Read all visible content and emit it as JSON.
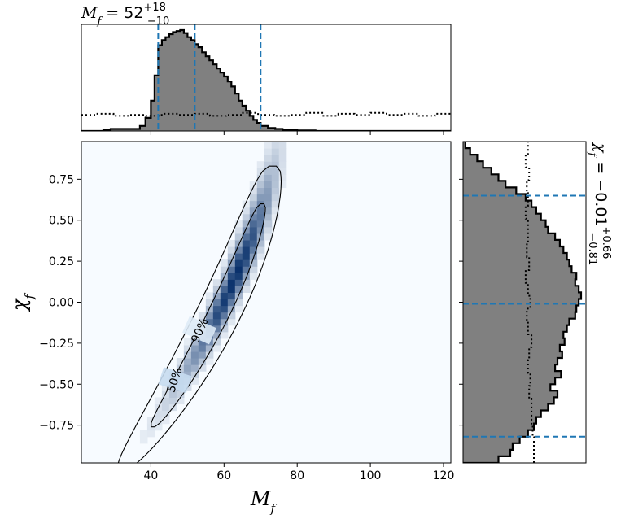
{
  "chart_data": {
    "type": "heatmap",
    "title_x": {
      "symbol": "M",
      "sub": "f",
      "value": "52",
      "plus": "+18",
      "minus": "−10"
    },
    "title_y": {
      "symbol": "χ",
      "sub": "f",
      "value": "−0.01",
      "plus": "+0.66",
      "minus": "−0.81"
    },
    "xlabel": {
      "symbol": "M",
      "sub": "f"
    },
    "ylabel": {
      "symbol": "χ",
      "sub": "f"
    },
    "xlim": [
      21,
      122
    ],
    "ylim": [
      -0.98,
      0.98
    ],
    "x_ticks": [
      40,
      60,
      80,
      100,
      120
    ],
    "x_tick_labels": [
      "40",
      "60",
      "80",
      "100",
      "120"
    ],
    "y_ticks": [
      0.75,
      0.5,
      0.25,
      0.0,
      -0.25,
      -0.5,
      -0.75
    ],
    "y_tick_labels": [
      "0.75",
      "0.50",
      "0.25",
      "0.00",
      "−0.25",
      "−0.50",
      "−0.75"
    ],
    "contour_labels": [
      "50%",
      "90%"
    ],
    "colors": {
      "heat_max": "#08306b",
      "heat_min": "#f7fbff",
      "hist_fill": "#808080",
      "quantile_line": "#1f77b4"
    },
    "x_quantiles": [
      42,
      52,
      70
    ],
    "y_quantiles": [
      0.65,
      -0.01,
      -0.82
    ],
    "x_hist": {
      "bins": [
        21,
        23,
        25,
        27,
        29,
        31,
        33,
        35,
        37,
        38.5,
        40,
        41,
        42,
        43,
        44,
        45,
        46,
        47,
        48,
        49,
        50,
        51,
        52,
        53,
        54,
        55,
        56,
        57,
        58,
        59,
        60,
        61,
        62,
        63,
        64,
        65,
        66,
        67,
        68,
        69,
        70,
        72,
        74,
        76,
        78,
        80,
        85,
        90,
        100,
        110,
        122
      ],
      "density": [
        0,
        0,
        0,
        0.01,
        0.02,
        0.02,
        0.02,
        0.02,
        0.05,
        0.13,
        0.3,
        0.55,
        0.85,
        0.9,
        0.93,
        0.96,
        0.98,
        0.99,
        1.0,
        0.97,
        0.93,
        0.9,
        0.86,
        0.83,
        0.78,
        0.74,
        0.7,
        0.66,
        0.62,
        0.58,
        0.54,
        0.49,
        0.44,
        0.37,
        0.3,
        0.25,
        0.2,
        0.15,
        0.11,
        0.08,
        0.05,
        0.03,
        0.02,
        0.01,
        0.01,
        0.005,
        0,
        0,
        0,
        0
      ]
    },
    "x_prior": [
      0.16,
      0.17,
      0.15,
      0.16,
      0.15,
      0.17,
      0.16,
      0.17,
      0.15,
      0.16,
      0.18,
      0.16,
      0.15,
      0.16,
      0.18,
      0.15,
      0.17,
      0.16,
      0.18,
      0.16,
      0.17,
      0.15,
      0.17
    ],
    "y_hist": {
      "bins": [
        -0.98,
        -0.94,
        -0.9,
        -0.86,
        -0.82,
        -0.78,
        -0.74,
        -0.7,
        -0.66,
        -0.62,
        -0.58,
        -0.54,
        -0.5,
        -0.46,
        -0.42,
        -0.38,
        -0.34,
        -0.3,
        -0.26,
        -0.22,
        -0.18,
        -0.14,
        -0.1,
        -0.06,
        -0.02,
        0.02,
        0.06,
        0.1,
        0.14,
        0.18,
        0.22,
        0.26,
        0.3,
        0.34,
        0.38,
        0.42,
        0.46,
        0.5,
        0.54,
        0.58,
        0.62,
        0.66,
        0.7,
        0.74,
        0.78,
        0.82,
        0.86,
        0.9,
        0.94,
        0.98
      ],
      "density": [
        0.3,
        0.4,
        0.42,
        0.48,
        0.55,
        0.6,
        0.62,
        0.66,
        0.72,
        0.77,
        0.8,
        0.74,
        0.78,
        0.83,
        0.78,
        0.8,
        0.84,
        0.82,
        0.86,
        0.85,
        0.88,
        0.9,
        0.95,
        0.96,
        0.98,
        1.0,
        0.98,
        0.95,
        0.96,
        0.92,
        0.9,
        0.88,
        0.85,
        0.82,
        0.78,
        0.72,
        0.7,
        0.66,
        0.62,
        0.58,
        0.53,
        0.45,
        0.36,
        0.3,
        0.24,
        0.17,
        0.12,
        0.06,
        0.02
      ]
    },
    "y_prior": [
      0.6,
      0.6,
      0.59,
      0.58,
      0.58,
      0.56,
      0.57,
      0.55,
      0.56,
      0.58,
      0.55,
      0.54,
      0.57,
      0.55,
      0.53,
      0.56,
      0.54,
      0.55,
      0.55,
      0.53,
      0.55,
      0.54,
      0.56,
      0.53,
      0.55
    ]
  }
}
